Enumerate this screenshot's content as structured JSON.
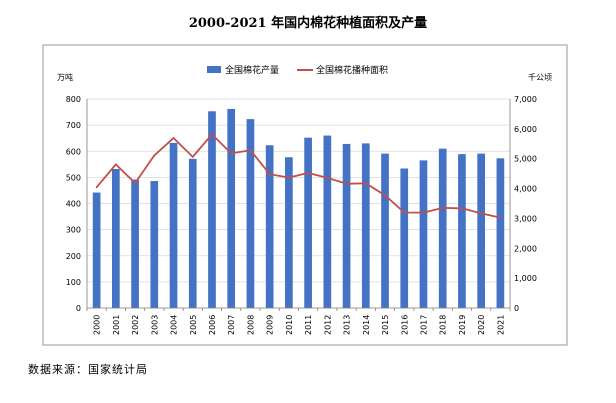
{
  "title": "2000-2021 年国内棉花种植面积及产量",
  "source": "数据来源：国家统计局",
  "chart_data": {
    "type": "bar",
    "title": "2000-2021 年国内棉花种植面积及产量",
    "categories": [
      "2000",
      "2001",
      "2002",
      "2003",
      "2004",
      "2005",
      "2006",
      "2007",
      "2008",
      "2009",
      "2010",
      "2011",
      "2012",
      "2013",
      "2014",
      "2015",
      "2016",
      "2017",
      "2018",
      "2019",
      "2020",
      "2021"
    ],
    "series": [
      {
        "name": "全国棉花产量",
        "type": "bar",
        "axis": "left",
        "color": "#4472C4",
        "values": [
          442,
          532,
          492,
          486,
          632,
          571,
          753,
          762,
          723,
          623,
          577,
          652,
          660,
          628,
          630,
          591,
          534,
          565,
          610,
          589,
          591,
          573
        ]
      },
      {
        "name": "全国棉花播种面积",
        "type": "line",
        "axis": "right",
        "color": "#C0504D",
        "values": [
          4041,
          4810,
          4184,
          5111,
          5693,
          5062,
          5816,
          5178,
          5285,
          4485,
          4366,
          4524,
          4360,
          4162,
          4176,
          3775,
          3198,
          3195,
          3354,
          3339,
          3169,
          3028
        ]
      }
    ],
    "y_left": {
      "unit": "万吨",
      "min": 0,
      "max": 800,
      "ticks": [
        "0",
        "100",
        "200",
        "300",
        "400",
        "500",
        "600",
        "700",
        "800"
      ]
    },
    "y_right": {
      "unit": "千公顷",
      "min": 0,
      "max": 7000,
      "ticks": [
        "0",
        "1,000",
        "2,000",
        "3,000",
        "4,000",
        "5,000",
        "6,000",
        "7,000"
      ]
    },
    "grid": true,
    "legend": "top-center"
  }
}
